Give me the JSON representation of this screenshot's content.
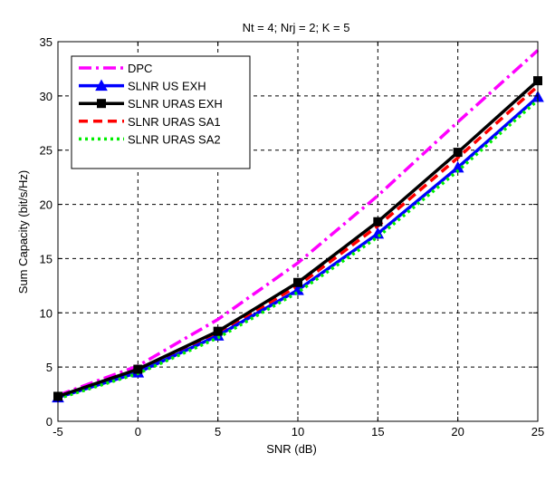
{
  "chart_data": {
    "type": "line",
    "title": "Nt = 4; Nrj = 2; K = 5",
    "xlabel": "SNR (dB)",
    "ylabel": "Sum Capacity  (bit/s/Hz)",
    "xlim": [
      -5,
      25
    ],
    "ylim": [
      0,
      35
    ],
    "x_ticks": [
      "-5",
      "0",
      "5",
      "10",
      "15",
      "20",
      "25"
    ],
    "y_ticks": [
      "0",
      "5",
      "10",
      "15",
      "20",
      "25",
      "30",
      "35"
    ],
    "grid": true,
    "legend_position": "top-left",
    "x": [
      -5,
      0,
      5,
      10,
      15,
      20,
      25
    ],
    "series": [
      {
        "name": "DPC",
        "color": "#ff00ff",
        "dash": "dash-dot",
        "marker": "none",
        "values": [
          2.4,
          5.1,
          9.4,
          14.6,
          20.8,
          27.6,
          34.2
        ]
      },
      {
        "name": "SLNR US EXH",
        "color": "#0000ff",
        "dash": "solid",
        "marker": "triangle",
        "values": [
          2.2,
          4.5,
          7.9,
          12.1,
          17.3,
          23.4,
          29.9
        ]
      },
      {
        "name": "SLNR URAS EXH",
        "color": "#000000",
        "dash": "solid",
        "marker": "square",
        "values": [
          2.3,
          4.8,
          8.3,
          12.8,
          18.4,
          24.8,
          31.4
        ]
      },
      {
        "name": "SLNR URAS SA1",
        "color": "#ff0000",
        "dash": "dashed",
        "marker": "none",
        "values": [
          2.2,
          4.7,
          8.1,
          12.5,
          18.0,
          24.3,
          30.9
        ]
      },
      {
        "name": "SLNR URAS SA2",
        "color": "#00ee00",
        "dash": "dotted",
        "marker": "none",
        "values": [
          2.1,
          4.4,
          7.7,
          11.9,
          17.0,
          23.1,
          29.6
        ]
      }
    ]
  }
}
